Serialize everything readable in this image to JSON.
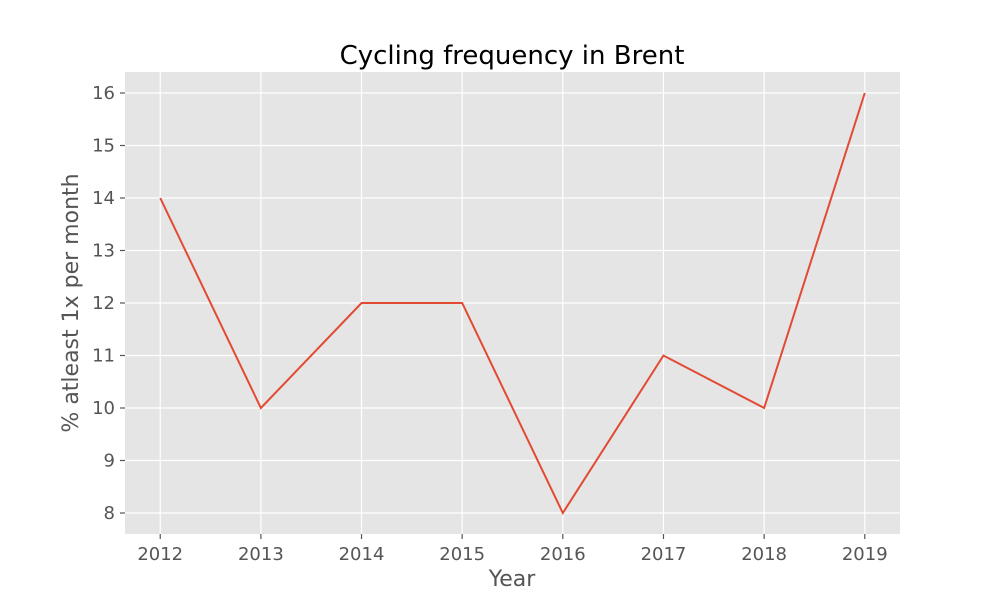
{
  "chart_data": {
    "type": "line",
    "title": "Cycling frequency in Brent",
    "xlabel": "Year",
    "ylabel": "% atleast 1x per month",
    "x": [
      2012,
      2013,
      2014,
      2015,
      2016,
      2017,
      2018,
      2019
    ],
    "series": [
      {
        "values": [
          14,
          10,
          12,
          12,
          8,
          11,
          10,
          16
        ],
        "color": "#e24a33"
      }
    ],
    "xlim": [
      2011.65,
      2019.35
    ],
    "ylim": [
      7.6,
      16.4
    ],
    "xticks": [
      "2012",
      "2013",
      "2014",
      "2015",
      "2016",
      "2017",
      "2018",
      "2019"
    ],
    "yticks": [
      "8",
      "9",
      "10",
      "11",
      "12",
      "13",
      "14",
      "15",
      "16"
    ],
    "grid": true,
    "background_color": "#e5e5e5",
    "grid_color": "#ffffff",
    "tick_color": "#555555"
  }
}
